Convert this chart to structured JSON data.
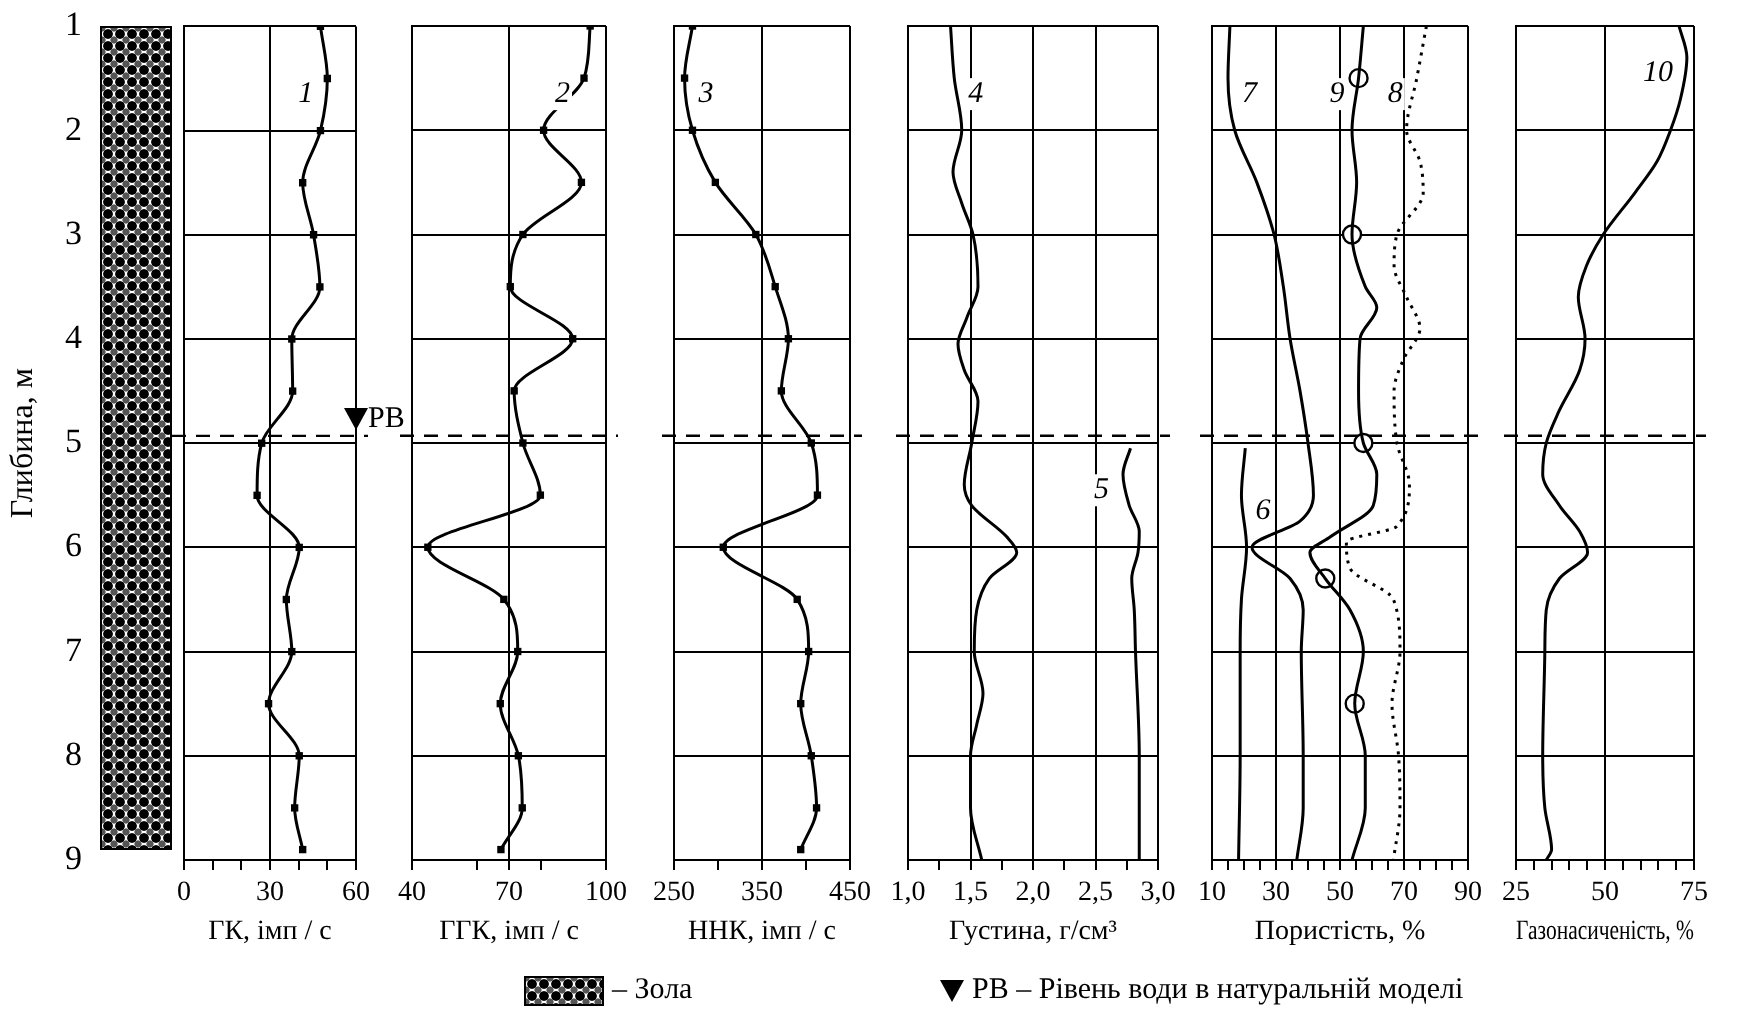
{
  "chart_data": [
    {
      "type": "line",
      "xlabel": "ГК, імп / с",
      "ylabel": "Глибина, м",
      "series": [
        {
          "name": "1",
          "color": "#000000",
          "x": [
            47.6,
            50,
            47.6,
            41.4,
            45.2,
            47.4,
            37.6,
            37.9,
            27.1,
            25.5,
            40.2,
            35.7,
            37.6,
            29.5,
            40.2,
            38.6,
            41.4
          ],
          "values": [
            1,
            1.5,
            2,
            2.5,
            3,
            3.5,
            4,
            4.5,
            5,
            5.5,
            6,
            6.5,
            7,
            7.5,
            8,
            8.5,
            8.9
          ]
        }
      ],
      "xlim": [
        0,
        60
      ],
      "xticks": [
        0,
        {
          "value": 10,
          "label": null
        },
        {
          "value": 20,
          "label": null
        },
        30,
        {
          "value": 40,
          "label": null
        },
        {
          "value": 50,
          "label": null
        },
        60
      ],
      "ylim": [
        9,
        1
      ],
      "yticks": [
        1,
        2,
        3,
        4,
        5,
        6,
        7,
        8,
        9
      ],
      "grid": true,
      "marker": "square",
      "ref_lines": [
        {
          "axis": "y",
          "value": 4.93,
          "label": "РВ"
        }
      ],
      "annotations": [
        "– Зола",
        "РВ – Рівень води в натуральній моделі"
      ]
    },
    {
      "type": "line",
      "xlabel": "ГГК, імп / с",
      "series": [
        {
          "name": "2",
          "color": "#000000",
          "x": [
            95.1,
            93.2,
            80.7,
            92.4,
            74.3,
            70.4,
            89.7,
            71.6,
            74.3,
            79.7,
            44.9,
            68.4,
            72.7,
            67.3,
            72.9,
            74.1,
            67.5
          ],
          "values": [
            1,
            1.5,
            2,
            2.5,
            3,
            3.5,
            4,
            4.5,
            5,
            5.5,
            6,
            6.5,
            7,
            7.5,
            8,
            8.5,
            8.9
          ]
        }
      ],
      "xlim": [
        40,
        100
      ],
      "xticks": [
        40,
        {
          "value": 60,
          "label": null
        },
        70,
        {
          "value": 80,
          "label": null
        },
        100
      ],
      "ylim": [
        9,
        1
      ],
      "yticks": [
        1,
        2,
        3,
        4,
        5,
        6,
        7,
        8,
        9
      ],
      "grid": true,
      "marker": "square",
      "tick_labels": "x",
      "ref_lines": [
        {
          "axis": "y",
          "value": 4.93
        }
      ]
    },
    {
      "type": "line",
      "xlabel": "ННК, імп / с",
      "series": [
        {
          "name": "3",
          "color": "#000000",
          "x": [
            271,
            262,
            271,
            297,
            343,
            365,
            380,
            372,
            406,
            413,
            306,
            390,
            403,
            394,
            406,
            412,
            394
          ],
          "values": [
            1,
            1.5,
            2,
            2.5,
            3,
            3.5,
            4,
            4.5,
            5,
            5.5,
            6,
            6.5,
            7,
            7.5,
            8,
            8.5,
            8.9
          ]
        }
      ],
      "xlim": [
        250,
        450
      ],
      "xticks": [
        250,
        {
          "value": 300,
          "label": null
        },
        350,
        {
          "value": 400,
          "label": null
        },
        450
      ],
      "ylim": [
        9,
        1
      ],
      "yticks": [
        1,
        2,
        3,
        4,
        5,
        6,
        7,
        8,
        9
      ],
      "grid": true,
      "marker": "square",
      "tick_labels": "x",
      "ref_lines": [
        {
          "axis": "y",
          "value": 4.93
        }
      ]
    },
    {
      "type": "line",
      "xlabel": "Густина, г/см³",
      "series": [
        {
          "name": "4",
          "color": "#000000",
          "x": [
            1.34,
            1.37,
            1.43,
            1.36,
            1.43,
            1.52,
            1.56,
            1.47,
            1.4,
            1.45,
            1.56,
            1.51,
            1.45,
            1.51,
            1.79,
            1.87,
            1.65,
            1.55,
            1.53,
            1.6,
            1.55,
            1.5,
            1.5,
            1.59
          ],
          "values": [
            1,
            1.5,
            2,
            2.4,
            2.7,
            3,
            3.5,
            3.8,
            4.05,
            4.3,
            4.6,
            5,
            5.4,
            5.6,
            5.9,
            6.05,
            6.3,
            6.6,
            7,
            7.4,
            7.7,
            8,
            8.5,
            9
          ]
        },
        {
          "name": "5",
          "color": "#000000",
          "x": [
            2.78,
            2.72,
            2.77,
            2.85,
            2.84,
            2.79,
            2.81,
            2.82,
            2.85,
            2.85
          ],
          "values": [
            5.05,
            5.3,
            5.6,
            5.85,
            6.05,
            6.3,
            6.6,
            7,
            8,
            9
          ]
        }
      ],
      "xlim": [
        1,
        3
      ],
      "xticks": [
        {
          "value": 1,
          "label": "1,0"
        },
        {
          "value": 1.25,
          "label": null
        },
        {
          "value": 1.5,
          "label": "1,5"
        },
        {
          "value": 1.75,
          "label": null
        },
        {
          "value": 2,
          "label": "2,0"
        },
        {
          "value": 2.25,
          "label": null
        },
        {
          "value": 2.5,
          "label": "2,5"
        },
        {
          "value": 2.75,
          "label": null
        },
        {
          "value": 3,
          "label": "3,0"
        }
      ],
      "ylim": [
        9,
        1
      ],
      "yticks": [
        1,
        2,
        3,
        4,
        5,
        6,
        7,
        8,
        9
      ],
      "grid": true,
      "tick_labels": "x",
      "ref_lines": [
        {
          "axis": "y",
          "value": 4.93
        }
      ]
    },
    {
      "type": "line",
      "xlabel": "Пористість, %",
      "series": [
        {
          "name": "6",
          "color": "#000000",
          "x": [
            20.4,
            19.2,
            20.8,
            19.2,
            18.8,
            18.8,
            18.3
          ],
          "values": [
            5.05,
            5.5,
            6,
            6.5,
            7,
            8,
            9
          ]
        },
        {
          "name": "7",
          "color": "#000000",
          "x": [
            15.6,
            15,
            17.1,
            24,
            29.4,
            32.3,
            34.4,
            37.5,
            40,
            41.7,
            37.5,
            22.5,
            34.4,
            38.5,
            37.9,
            38.5,
            38.5,
            36.5
          ],
          "values": [
            1,
            1.5,
            2,
            2.5,
            3,
            3.5,
            4,
            4.5,
            5,
            5.5,
            5.75,
            6,
            6.3,
            6.6,
            7,
            8,
            8.5,
            9
          ]
        },
        {
          "name": "8",
          "color": "#000000",
          "line_style": "dotted",
          "x": [
            77,
            74,
            70.8,
            75,
            76,
            67.8,
            66.9,
            70.8,
            75,
            69.8,
            66.9,
            67.8,
            71.7,
            67.7,
            52,
            53.1,
            66.7,
            68.75,
            66.25,
            68.3,
            68.75,
            66.7
          ],
          "values": [
            1,
            1.5,
            2,
            2.3,
            2.6,
            3,
            3.3,
            3.6,
            3.9,
            4.2,
            4.5,
            5,
            5.4,
            5.8,
            5.95,
            6.2,
            6.5,
            7,
            7.5,
            8,
            8.5,
            9
          ]
        },
        {
          "name": "9",
          "color": "#000000",
          "x": [
            57.3,
            55.8,
            53.75,
            55.2,
            53.75,
            57.9,
            61.5,
            56.25,
            55.8,
            57.3,
            61.5,
            60.4,
            47,
            40.6,
            45.4,
            53.1,
            57.3,
            54.6,
            57.9,
            57.9,
            53.75
          ],
          "values": [
            1,
            1.5,
            2,
            2.5,
            3,
            3.5,
            3.7,
            4,
            4.5,
            5,
            5.3,
            5.6,
            5.9,
            6.05,
            6.3,
            6.6,
            7,
            7.5,
            8,
            8.5,
            9
          ]
        },
        {
          "type": "scatter",
          "marker": "circle",
          "color": "#000000",
          "x": [
            55.8,
            53.75,
            57.3,
            45.4,
            54.6
          ],
          "values": [
            1.5,
            3,
            5,
            6.3,
            7.5
          ]
        }
      ],
      "xlim": [
        10,
        90
      ],
      "xticks": [
        10,
        {
          "value": 15,
          "label": null
        },
        {
          "value": 20,
          "label": null
        },
        {
          "value": 25,
          "label": null
        },
        30,
        {
          "value": 35,
          "label": null
        },
        {
          "value": 40,
          "label": null
        },
        {
          "value": 45,
          "label": null
        },
        50,
        {
          "value": 55,
          "label": null
        },
        {
          "value": 60,
          "label": null
        },
        {
          "value": 65,
          "label": null
        },
        70,
        {
          "value": 75,
          "label": null
        },
        {
          "value": 80,
          "label": null
        },
        {
          "value": 85,
          "label": null
        },
        90
      ],
      "ylim": [
        9,
        1
      ],
      "yticks": [
        1,
        2,
        3,
        4,
        5,
        6,
        7,
        8,
        9
      ],
      "grid": true,
      "tick_labels": "x",
      "ref_lines": [
        {
          "axis": "y",
          "value": 4.93
        }
      ]
    },
    {
      "type": "line",
      "xlabel": "Газонасиченість, %",
      "series": [
        {
          "name": "10",
          "color": "#000000",
          "x": [
            70.8,
            73,
            71.2,
            68.4,
            64.6,
            58.4,
            49.5,
            44.8,
            42.5,
            44.4,
            42.9,
            37,
            33.5,
            32.5,
            37.2,
            42.9,
            45.1,
            37.2,
            33.5,
            33.1,
            32.5,
            33.1,
            35,
            33.5
          ],
          "values": [
            1,
            1.3,
            1.7,
            2,
            2.3,
            2.6,
            3,
            3.3,
            3.6,
            4,
            4.3,
            4.7,
            5,
            5.3,
            5.6,
            5.85,
            6.05,
            6.3,
            6.6,
            7,
            8,
            8.5,
            8.9,
            9
          ]
        }
      ],
      "xlim": [
        25,
        75
      ],
      "xticks": [
        25,
        {
          "value": 30,
          "label": null
        },
        {
          "value": 35,
          "label": null
        },
        {
          "value": 40,
          "label": null
        },
        {
          "value": 45,
          "label": null
        },
        50,
        {
          "value": 55,
          "label": null
        },
        {
          "value": 60,
          "label": null
        },
        {
          "value": 65,
          "label": null
        },
        {
          "value": 70,
          "label": null
        },
        75
      ],
      "ylim": [
        9,
        1
      ],
      "yticks": [
        1,
        2,
        3,
        4,
        5,
        6,
        7,
        8,
        9
      ],
      "grid": true,
      "tick_labels": "x",
      "ref_lines": [
        {
          "axis": "y",
          "value": 4.93
        }
      ]
    }
  ]
}
